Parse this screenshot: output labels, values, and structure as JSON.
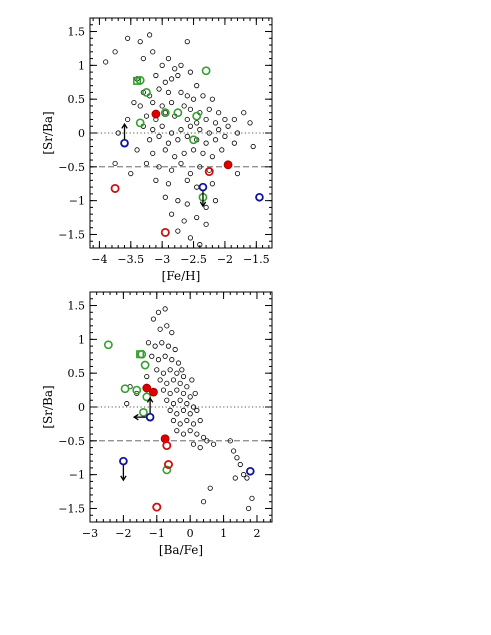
{
  "chart_data": [
    {
      "type": "scatter",
      "xlabel": "[Fe/H]",
      "ylabel": "[Sr/Ba]",
      "xlim": [
        -4.15,
        -1.25
      ],
      "ylim": [
        -1.7,
        1.7
      ],
      "x_ticks": [
        -4,
        -3.5,
        -3,
        -2.5,
        -2,
        -1.5
      ],
      "x_tick_labels": [
        "−4",
        "−3.5",
        "−3",
        "−2.5",
        "−2",
        "−1.5"
      ],
      "y_ticks": [
        -1.5,
        -1,
        -0.5,
        0,
        0.5,
        1,
        1.5
      ],
      "y_tick_labels": [
        "−1.5",
        "−1",
        "−0.5",
        "0",
        "0.5",
        "1",
        "1.5"
      ],
      "reference_lines": [
        {
          "y": 0,
          "style": "dotted"
        },
        {
          "y": -0.5,
          "style": "dashed"
        }
      ],
      "series": [
        {
          "style": "open-black-small",
          "color": "#000000",
          "points": [
            [
              -3.9,
              1.05
            ],
            [
              -3.75,
              1.2
            ],
            [
              -3.55,
              1.4
            ],
            [
              -3.35,
              1.35
            ],
            [
              -3.2,
              1.45
            ],
            [
              -3.3,
              1.1
            ],
            [
              -3.15,
              1.2
            ],
            [
              -3.0,
              1.0
            ],
            [
              -2.9,
              1.1
            ],
            [
              -2.8,
              0.95
            ],
            [
              -2.7,
              1.0
            ],
            [
              -2.6,
              1.35
            ],
            [
              -3.4,
              0.8
            ],
            [
              -3.1,
              0.85
            ],
            [
              -2.95,
              0.75
            ],
            [
              -2.85,
              0.8
            ],
            [
              -2.75,
              0.85
            ],
            [
              -2.55,
              0.9
            ],
            [
              -2.45,
              0.7
            ],
            [
              -3.3,
              0.6
            ],
            [
              -3.2,
              0.55
            ],
            [
              -3.05,
              0.65
            ],
            [
              -2.9,
              0.6
            ],
            [
              -2.7,
              0.6
            ],
            [
              -2.6,
              0.55
            ],
            [
              -2.5,
              0.5
            ],
            [
              -2.35,
              0.55
            ],
            [
              -2.2,
              0.5
            ],
            [
              -3.45,
              0.45
            ],
            [
              -3.35,
              0.4
            ],
            [
              -3.15,
              0.45
            ],
            [
              -3.0,
              0.4
            ],
            [
              -2.85,
              0.45
            ],
            [
              -2.65,
              0.4
            ],
            [
              -2.55,
              0.35
            ],
            [
              -2.4,
              0.3
            ],
            [
              -2.25,
              0.35
            ],
            [
              -2.1,
              0.3
            ],
            [
              -3.25,
              0.25
            ],
            [
              -3.1,
              0.2
            ],
            [
              -2.95,
              0.3
            ],
            [
              -2.8,
              0.25
            ],
            [
              -2.6,
              0.2
            ],
            [
              -2.45,
              0.15
            ],
            [
              -2.3,
              0.2
            ],
            [
              -2.15,
              0.15
            ],
            [
              -2.0,
              0.2
            ],
            [
              -1.85,
              0.2
            ],
            [
              -3.3,
              0.1
            ],
            [
              -3.15,
              0.05
            ],
            [
              -3.0,
              0.1
            ],
            [
              -2.85,
              0.0
            ],
            [
              -2.7,
              0.05
            ],
            [
              -2.55,
              0.1
            ],
            [
              -2.4,
              0.05
            ],
            [
              -2.25,
              0.0
            ],
            [
              -2.1,
              0.05
            ],
            [
              -1.95,
              0.1
            ],
            [
              -1.8,
              0.0
            ],
            [
              -3.2,
              -0.1
            ],
            [
              -3.05,
              -0.05
            ],
            [
              -2.9,
              -0.15
            ],
            [
              -2.75,
              -0.1
            ],
            [
              -2.6,
              -0.05
            ],
            [
              -2.45,
              -0.1
            ],
            [
              -2.3,
              -0.15
            ],
            [
              -2.15,
              -0.1
            ],
            [
              -2.0,
              -0.05
            ],
            [
              -1.85,
              -0.15
            ],
            [
              -3.4,
              -0.25
            ],
            [
              -3.15,
              -0.3
            ],
            [
              -2.95,
              -0.25
            ],
            [
              -2.8,
              -0.35
            ],
            [
              -2.65,
              -0.3
            ],
            [
              -2.5,
              -0.25
            ],
            [
              -2.35,
              -0.3
            ],
            [
              -2.2,
              -0.35
            ],
            [
              -2.05,
              -0.25
            ],
            [
              -3.25,
              -0.45
            ],
            [
              -3.05,
              -0.5
            ],
            [
              -2.85,
              -0.55
            ],
            [
              -2.7,
              -0.45
            ],
            [
              -2.55,
              -0.6
            ],
            [
              -2.4,
              -0.5
            ],
            [
              -2.25,
              -0.55
            ],
            [
              -1.95,
              -0.45
            ],
            [
              -3.5,
              -0.6
            ],
            [
              -3.1,
              -0.7
            ],
            [
              -2.9,
              -0.75
            ],
            [
              -2.6,
              -0.7
            ],
            [
              -2.45,
              -0.8
            ],
            [
              -2.2,
              -0.75
            ],
            [
              -1.8,
              -0.6
            ],
            [
              -2.95,
              -0.95
            ],
            [
              -2.75,
              -1.0
            ],
            [
              -2.6,
              -1.05
            ],
            [
              -2.3,
              -1.1
            ],
            [
              -2.15,
              -1.0
            ],
            [
              -2.85,
              -1.2
            ],
            [
              -2.65,
              -1.3
            ],
            [
              -2.45,
              -1.25
            ],
            [
              -2.3,
              -1.35
            ],
            [
              -2.75,
              -1.45
            ],
            [
              -2.55,
              -1.55
            ],
            [
              -2.4,
              -1.65
            ],
            [
              -1.6,
              0.15
            ],
            [
              -1.7,
              0.3
            ],
            [
              -3.55,
              0.2
            ],
            [
              -3.7,
              0.0
            ],
            [
              -3.75,
              -0.45
            ],
            [
              -1.55,
              -0.2
            ]
          ]
        },
        {
          "style": "open-green",
          "color": "#33a02c",
          "points": [
            [
              -3.35,
              0.78
            ],
            [
              -3.25,
              0.6
            ],
            [
              -3.35,
              0.15
            ],
            [
              -2.95,
              0.3
            ],
            [
              -2.75,
              0.3
            ],
            [
              -2.5,
              -0.1
            ],
            [
              -2.45,
              0.25
            ],
            [
              -2.3,
              0.92
            ],
            [
              -2.35,
              -0.95
            ]
          ]
        },
        {
          "style": "open-green-square",
          "color": "#33a02c",
          "points": [
            [
              -3.4,
              0.77
            ]
          ]
        },
        {
          "style": "filled-red",
          "color": "#dd0000",
          "points": [
            [
              -3.1,
              0.28
            ],
            [
              -1.95,
              -0.47
            ]
          ]
        },
        {
          "style": "open-red",
          "color": "#cc1111",
          "points": [
            [
              -3.75,
              -0.82
            ],
            [
              -2.25,
              -0.57
            ],
            [
              -2.95,
              -1.47
            ]
          ]
        },
        {
          "style": "open-blue",
          "color": "#111199",
          "points": [
            [
              -3.6,
              -0.15
            ],
            [
              -2.35,
              -0.8
            ],
            [
              -1.45,
              -0.95
            ]
          ]
        }
      ],
      "upper_limits": [
        [
          -2.35,
          -0.8
        ]
      ],
      "lower_limits": [
        [
          -3.6,
          -0.15
        ]
      ]
    },
    {
      "type": "scatter",
      "xlabel": "[Ba/Fe]",
      "ylabel": "[Sr/Ba]",
      "xlim": [
        -3.0,
        2.45
      ],
      "ylim": [
        -1.7,
        1.7
      ],
      "x_ticks": [
        -3,
        -2,
        -1,
        0,
        1,
        2
      ],
      "x_tick_labels": [
        "−3",
        "−2",
        "−1",
        "0",
        "1",
        "2"
      ],
      "y_ticks": [
        -1.5,
        -1,
        -0.5,
        0,
        0.5,
        1,
        1.5
      ],
      "y_tick_labels": [
        "−1.5",
        "−1",
        "−0.5",
        "0",
        "0.5",
        "1",
        "1.5"
      ],
      "reference_lines": [
        {
          "y": 0,
          "style": "dotted"
        },
        {
          "y": -0.5,
          "style": "dashed"
        }
      ],
      "series": [
        {
          "style": "open-black-small",
          "color": "#000000",
          "points": [
            [
              -1.1,
              1.3
            ],
            [
              -0.95,
              1.4
            ],
            [
              -0.75,
              1.45
            ],
            [
              -0.9,
              1.15
            ],
            [
              -0.7,
              1.2
            ],
            [
              -0.55,
              1.1
            ],
            [
              -1.25,
              0.95
            ],
            [
              -1.05,
              0.9
            ],
            [
              -0.85,
              0.95
            ],
            [
              -0.65,
              0.9
            ],
            [
              -0.45,
              0.85
            ],
            [
              -1.15,
              0.75
            ],
            [
              -0.95,
              0.7
            ],
            [
              -0.75,
              0.75
            ],
            [
              -0.55,
              0.7
            ],
            [
              -0.35,
              0.65
            ],
            [
              -1.0,
              0.55
            ],
            [
              -0.8,
              0.5
            ],
            [
              -0.6,
              0.55
            ],
            [
              -0.4,
              0.5
            ],
            [
              -0.2,
              0.45
            ],
            [
              -0.9,
              0.4
            ],
            [
              -0.7,
              0.35
            ],
            [
              -0.5,
              0.4
            ],
            [
              -0.3,
              0.35
            ],
            [
              -0.1,
              0.3
            ],
            [
              -0.8,
              0.25
            ],
            [
              -0.6,
              0.2
            ],
            [
              -0.4,
              0.25
            ],
            [
              -0.2,
              0.2
            ],
            [
              0.0,
              0.15
            ],
            [
              -0.7,
              0.1
            ],
            [
              -0.5,
              0.05
            ],
            [
              -0.3,
              0.1
            ],
            [
              -0.1,
              0.05
            ],
            [
              0.1,
              0.0
            ],
            [
              -0.6,
              -0.05
            ],
            [
              -0.4,
              -0.1
            ],
            [
              -0.2,
              -0.05
            ],
            [
              0.0,
              -0.1
            ],
            [
              0.2,
              -0.05
            ],
            [
              -0.5,
              -0.2
            ],
            [
              -0.3,
              -0.25
            ],
            [
              -0.1,
              -0.2
            ],
            [
              0.1,
              -0.25
            ],
            [
              0.3,
              -0.2
            ],
            [
              -0.4,
              -0.35
            ],
            [
              -0.2,
              -0.4
            ],
            [
              0.0,
              -0.35
            ],
            [
              0.2,
              -0.4
            ],
            [
              0.4,
              -0.45
            ],
            [
              0.1,
              -0.55
            ],
            [
              0.3,
              -0.6
            ],
            [
              0.5,
              -0.5
            ],
            [
              0.7,
              -0.55
            ],
            [
              1.2,
              -0.5
            ],
            [
              1.3,
              -0.65
            ],
            [
              1.4,
              -0.75
            ],
            [
              1.5,
              -0.85
            ],
            [
              1.6,
              -1.0
            ],
            [
              1.35,
              -1.05
            ],
            [
              1.7,
              -1.05
            ],
            [
              1.85,
              -1.35
            ],
            [
              1.75,
              -1.5
            ],
            [
              0.6,
              -1.2
            ],
            [
              0.4,
              -1.4
            ],
            [
              -1.8,
              0.3
            ],
            [
              -1.9,
              0.05
            ],
            [
              -1.6,
              0.2
            ],
            [
              -1.3,
              0.45
            ],
            [
              -0.25,
              0.55
            ],
            [
              0.05,
              0.4
            ],
            [
              0.15,
              0.2
            ]
          ]
        },
        {
          "style": "open-green",
          "color": "#33a02c",
          "points": [
            [
              -2.45,
              0.92
            ],
            [
              -1.45,
              0.78
            ],
            [
              -1.35,
              0.62
            ],
            [
              -1.95,
              0.27
            ],
            [
              -1.6,
              0.25
            ],
            [
              -1.3,
              0.15
            ],
            [
              -1.4,
              -0.08
            ],
            [
              -0.7,
              -0.93
            ]
          ]
        },
        {
          "style": "open-green-square",
          "color": "#33a02c",
          "points": [
            [
              -1.5,
              0.78
            ]
          ]
        },
        {
          "style": "filled-red",
          "color": "#dd0000",
          "points": [
            [
              -1.3,
              0.28
            ],
            [
              -1.1,
              0.22
            ],
            [
              -0.75,
              -0.47
            ]
          ]
        },
        {
          "style": "open-red",
          "color": "#cc1111",
          "points": [
            [
              -0.7,
              -0.57
            ],
            [
              -0.65,
              -0.85
            ],
            [
              -1.0,
              -1.48
            ]
          ]
        },
        {
          "style": "open-blue",
          "color": "#111199",
          "points": [
            [
              -2.0,
              -0.8
            ],
            [
              -1.2,
              -0.15
            ],
            [
              1.8,
              -0.95
            ]
          ]
        }
      ],
      "upper_limits": [
        [
          -2.0,
          -0.8
        ]
      ],
      "left_limits": [
        [
          -1.2,
          -0.15
        ]
      ],
      "lower_limits": [
        [
          -1.2,
          -0.15
        ]
      ]
    }
  ]
}
